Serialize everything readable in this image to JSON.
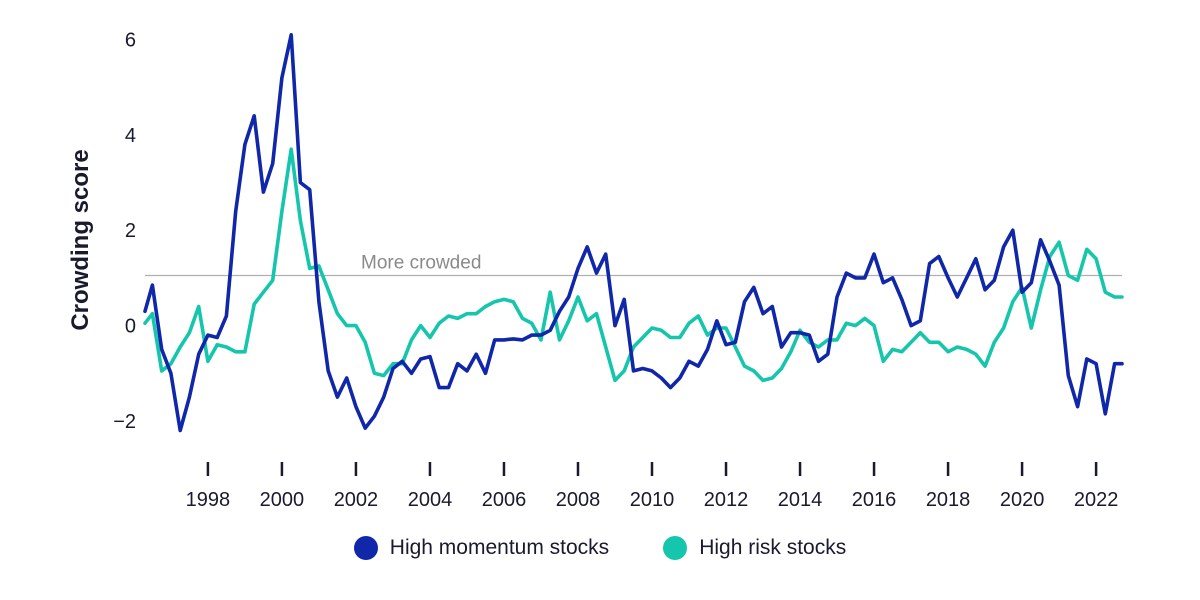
{
  "chart_data": {
    "type": "line",
    "ylabel": "Crowding score",
    "ylim": [
      -2.4,
      6.2
    ],
    "xlim": [
      1996.3,
      2022.7
    ],
    "yticks": [
      -2,
      0,
      2,
      4,
      6
    ],
    "ytick_labels": [
      "−2",
      "0",
      "2",
      "4",
      "6"
    ],
    "xticks": [
      1998,
      2000,
      2002,
      2004,
      2006,
      2008,
      2010,
      2012,
      2014,
      2016,
      2018,
      2020,
      2022
    ],
    "grid": false,
    "legend_position": "bottom-center",
    "reference_line": {
      "y": 1.05,
      "label": "More crowded",
      "color": "#b0b0b0"
    },
    "series": [
      {
        "name": "High momentum stocks",
        "color": "#0f27a8",
        "x": [
          1996.3,
          1996.5,
          1996.75,
          1997.0,
          1997.25,
          1997.5,
          1997.75,
          1998.0,
          1998.25,
          1998.5,
          1998.75,
          1999.0,
          1999.25,
          1999.5,
          1999.75,
          2000.0,
          2000.25,
          2000.5,
          2000.75,
          2001.0,
          2001.25,
          2001.5,
          2001.75,
          2002.0,
          2002.25,
          2002.5,
          2002.75,
          2003.0,
          2003.25,
          2003.5,
          2003.75,
          2004.0,
          2004.25,
          2004.5,
          2004.75,
          2005.0,
          2005.25,
          2005.5,
          2005.75,
          2006.0,
          2006.25,
          2006.5,
          2006.75,
          2007.0,
          2007.25,
          2007.5,
          2007.75,
          2008.0,
          2008.25,
          2008.5,
          2008.75,
          2009.0,
          2009.25,
          2009.5,
          2009.75,
          2010.0,
          2010.25,
          2010.5,
          2010.75,
          2011.0,
          2011.25,
          2011.5,
          2011.75,
          2012.0,
          2012.25,
          2012.5,
          2012.75,
          2013.0,
          2013.25,
          2013.5,
          2013.75,
          2014.0,
          2014.25,
          2014.5,
          2014.75,
          2015.0,
          2015.25,
          2015.5,
          2015.75,
          2016.0,
          2016.25,
          2016.5,
          2016.75,
          2017.0,
          2017.25,
          2017.5,
          2017.75,
          2018.0,
          2018.25,
          2018.5,
          2018.75,
          2019.0,
          2019.25,
          2019.5,
          2019.75,
          2020.0,
          2020.25,
          2020.5,
          2020.75,
          2021.0,
          2021.25,
          2021.5,
          2021.75,
          2022.0,
          2022.25,
          2022.5,
          2022.7
        ],
        "y": [
          0.3,
          0.85,
          -0.5,
          -1.0,
          -2.2,
          -1.5,
          -0.6,
          -0.2,
          -0.25,
          0.2,
          2.4,
          3.8,
          4.4,
          2.8,
          3.4,
          5.2,
          6.1,
          3.0,
          2.85,
          0.5,
          -0.95,
          -1.5,
          -1.1,
          -1.7,
          -2.15,
          -1.9,
          -1.5,
          -0.9,
          -0.75,
          -1.0,
          -0.7,
          -0.65,
          -1.3,
          -1.3,
          -0.8,
          -0.95,
          -0.6,
          -1.0,
          -0.3,
          -0.3,
          -0.28,
          -0.3,
          -0.2,
          -0.2,
          -0.1,
          0.3,
          0.6,
          1.2,
          1.65,
          1.1,
          1.5,
          0.0,
          0.55,
          -0.95,
          -0.9,
          -0.95,
          -1.1,
          -1.3,
          -1.1,
          -0.75,
          -0.85,
          -0.5,
          0.1,
          -0.4,
          -0.35,
          0.5,
          0.8,
          0.25,
          0.4,
          -0.45,
          -0.15,
          -0.15,
          -0.2,
          -0.75,
          -0.6,
          0.6,
          1.1,
          1.0,
          1.0,
          1.5,
          0.9,
          1.0,
          0.55,
          0.0,
          0.1,
          1.3,
          1.45,
          1.0,
          0.6,
          1.0,
          1.4,
          0.75,
          0.95,
          1.65,
          2.0,
          0.7,
          0.9,
          1.8,
          1.35,
          0.85,
          -1.05,
          -1.7,
          -0.7,
          -0.8,
          -1.85,
          -0.8,
          -0.8
        ]
      },
      {
        "name": "High risk stocks",
        "color": "#15c6ac",
        "x": [
          1996.3,
          1996.5,
          1996.75,
          1997.0,
          1997.25,
          1997.5,
          1997.75,
          1998.0,
          1998.25,
          1998.5,
          1998.75,
          1999.0,
          1999.25,
          1999.5,
          1999.75,
          2000.0,
          2000.25,
          2000.5,
          2000.75,
          2001.0,
          2001.25,
          2001.5,
          2001.75,
          2002.0,
          2002.25,
          2002.5,
          2002.75,
          2003.0,
          2003.25,
          2003.5,
          2003.75,
          2004.0,
          2004.25,
          2004.5,
          2004.75,
          2005.0,
          2005.25,
          2005.5,
          2005.75,
          2006.0,
          2006.25,
          2006.5,
          2006.75,
          2007.0,
          2007.25,
          2007.5,
          2007.75,
          2008.0,
          2008.25,
          2008.5,
          2008.75,
          2009.0,
          2009.25,
          2009.5,
          2009.75,
          2010.0,
          2010.25,
          2010.5,
          2010.75,
          2011.0,
          2011.25,
          2011.5,
          2011.75,
          2012.0,
          2012.25,
          2012.5,
          2012.75,
          2013.0,
          2013.25,
          2013.5,
          2013.75,
          2014.0,
          2014.25,
          2014.5,
          2014.75,
          2015.0,
          2015.25,
          2015.5,
          2015.75,
          2016.0,
          2016.25,
          2016.5,
          2016.75,
          2017.0,
          2017.25,
          2017.5,
          2017.75,
          2018.0,
          2018.25,
          2018.5,
          2018.75,
          2019.0,
          2019.25,
          2019.5,
          2019.75,
          2020.0,
          2020.25,
          2020.5,
          2020.75,
          2021.0,
          2021.25,
          2021.5,
          2021.75,
          2022.0,
          2022.25,
          2022.5,
          2022.7
        ],
        "y": [
          0.05,
          0.25,
          -0.95,
          -0.8,
          -0.45,
          -0.15,
          0.4,
          -0.75,
          -0.4,
          -0.45,
          -0.55,
          -0.55,
          0.45,
          0.7,
          0.95,
          2.4,
          3.7,
          2.2,
          1.2,
          1.25,
          0.75,
          0.25,
          0.0,
          0.0,
          -0.35,
          -1.0,
          -1.05,
          -0.8,
          -0.8,
          -0.3,
          0.0,
          -0.25,
          0.05,
          0.2,
          0.15,
          0.25,
          0.25,
          0.4,
          0.5,
          0.55,
          0.5,
          0.15,
          0.05,
          -0.3,
          0.7,
          -0.3,
          0.1,
          0.6,
          0.1,
          0.25,
          -0.45,
          -1.15,
          -0.95,
          -0.45,
          -0.25,
          -0.05,
          -0.1,
          -0.25,
          -0.25,
          0.05,
          0.2,
          -0.2,
          -0.05,
          -0.05,
          -0.45,
          -0.85,
          -0.95,
          -1.15,
          -1.1,
          -0.9,
          -0.55,
          -0.1,
          -0.35,
          -0.45,
          -0.3,
          -0.3,
          0.05,
          0.0,
          0.15,
          0.0,
          -0.75,
          -0.5,
          -0.55,
          -0.35,
          -0.15,
          -0.35,
          -0.35,
          -0.55,
          -0.45,
          -0.5,
          -0.6,
          -0.85,
          -0.35,
          -0.05,
          0.5,
          0.8,
          -0.05,
          0.75,
          1.45,
          1.75,
          1.05,
          0.95,
          1.6,
          1.4,
          0.7,
          0.6,
          0.6
        ]
      }
    ]
  }
}
